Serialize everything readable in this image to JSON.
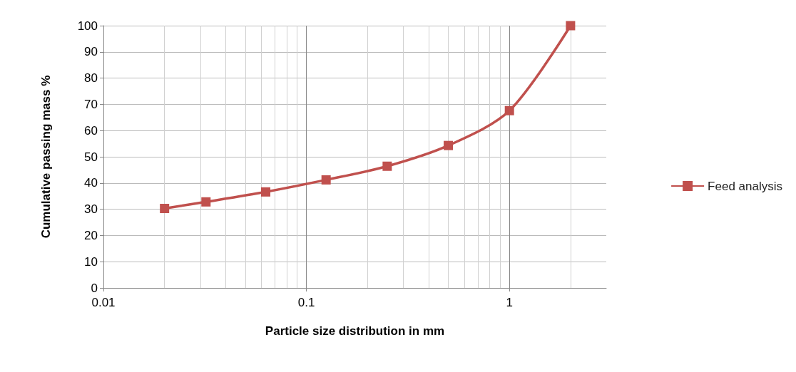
{
  "chart_data": {
    "type": "line",
    "xlabel": "Particle size distribution in mm",
    "ylabel": "Cumulative passing mass %",
    "x": [
      0.02,
      0.032,
      0.063,
      0.125,
      0.25,
      0.5,
      1,
      2
    ],
    "series": [
      {
        "name": "Feed analysis",
        "color": "#c0504d",
        "values": [
          30.3,
          32.8,
          36.6,
          41.2,
          46.4,
          54.3,
          67.6,
          100
        ]
      }
    ],
    "log": "x",
    "xlim": [
      0.01,
      3
    ],
    "xticks": [
      0.01,
      0.1,
      1
    ],
    "ylim": [
      0,
      100
    ],
    "yticks": [
      0,
      10,
      20,
      30,
      40,
      50,
      60,
      70,
      80,
      90,
      100
    ],
    "grid": true,
    "legend": "right",
    "marker": "square",
    "line_style": "solid"
  }
}
